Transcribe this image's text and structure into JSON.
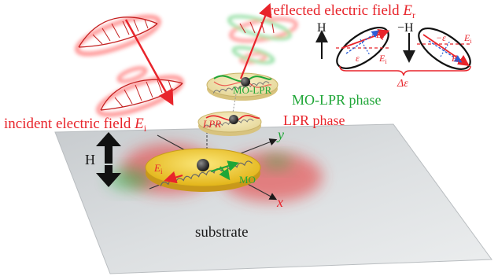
{
  "labels": {
    "incident": "incident electric field ",
    "incident_sym": "E",
    "incident_sub": "i",
    "reflected": "reflected electric field ",
    "reflected_sym": "E",
    "reflected_sub": "r",
    "mo_lpr_phase": "MO-LPR phase",
    "lpr_phase": "LPR phase",
    "substrate": "substrate",
    "h_field": "H",
    "axis_x": "x",
    "axis_y": "y",
    "disk_mo_lpr": "MO-LPR",
    "disk_lpr": "LPR",
    "disk_mo": "MO",
    "disk_ei_sym": "E",
    "disk_ei_sub": "i"
  },
  "inset": {
    "h_plus": "H",
    "h_minus": "−H",
    "e_r_sym": "E",
    "e_r_sub": "r",
    "e_i_sym": "E",
    "e_i_sub": "i",
    "eps": "ε",
    "neg_eps": "−ε",
    "delta_eps": "Δε"
  },
  "colors": {
    "field_red": "#e8242b",
    "phase_green": "#1fa637",
    "disk_gold": "#f2cf2a",
    "substrate_gray": "#d3d6d8",
    "inset_blue": "#2b5ed6"
  }
}
